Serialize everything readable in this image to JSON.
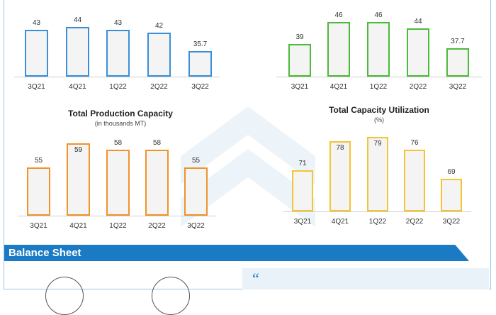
{
  "chart_data": [
    {
      "type": "bar",
      "title": "",
      "categories": [
        "3Q21",
        "4Q21",
        "1Q22",
        "2Q22",
        "3Q22"
      ],
      "values": [
        43,
        44,
        43,
        42,
        35.7
      ],
      "color": "#3a8fd9"
    },
    {
      "type": "bar",
      "title": "",
      "categories": [
        "3Q21",
        "4Q21",
        "1Q22",
        "2Q22",
        "3Q22"
      ],
      "values": [
        39,
        46,
        46,
        44,
        37.7
      ],
      "color": "#4cba3a"
    },
    {
      "type": "bar",
      "title": "Total Production Capacity",
      "subtitle": "(in thousands MT)",
      "categories": [
        "3Q21",
        "4Q21",
        "1Q22",
        "2Q22",
        "3Q22"
      ],
      "values": [
        55,
        59,
        58,
        58,
        55
      ],
      "color": "#f0932b"
    },
    {
      "type": "bar",
      "title": "Total Capacity Utilization",
      "subtitle": "(%)",
      "categories": [
        "3Q21",
        "4Q21",
        "1Q22",
        "2Q22",
        "3Q22"
      ],
      "values": [
        71,
        78,
        79,
        76,
        69
      ],
      "color": "#f5c431"
    }
  ],
  "section": {
    "title": "Balance Sheet",
    "quote_mark": "“"
  },
  "colors": {
    "banner": "#1a7bc4",
    "quote_bg": "#e9f2f9"
  }
}
